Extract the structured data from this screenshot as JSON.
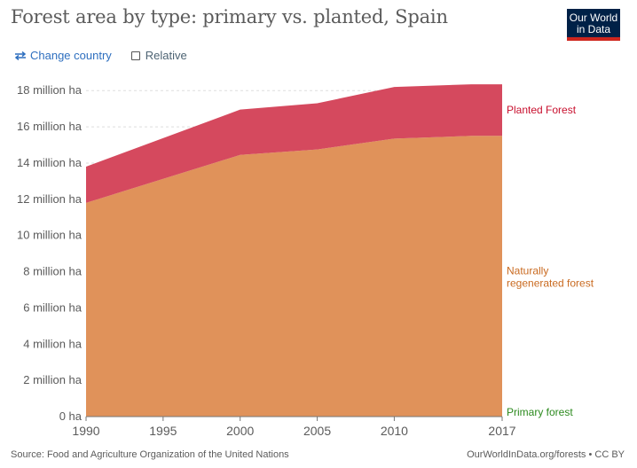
{
  "header": {
    "title": "Forest area by type: primary vs. planted, Spain",
    "logo_line1": "Our World",
    "logo_line2": "in Data"
  },
  "controls": {
    "change_country_label": "Change country",
    "relative_label": "Relative",
    "relative_checked": false
  },
  "footer": {
    "source": "Source: Food and Agriculture Organization of the United Nations",
    "link": "OurWorldInData.org/forests • CC BY"
  },
  "chart_data": {
    "type": "area",
    "stacked": true,
    "title": "Forest area by type: primary vs. planted, Spain",
    "x": [
      1990,
      2000,
      2005,
      2010,
      2015,
      2017
    ],
    "xticks": [
      1990,
      1995,
      2000,
      2005,
      2010,
      2017
    ],
    "yticks": [
      0,
      2,
      4,
      6,
      8,
      10,
      12,
      14,
      16,
      18
    ],
    "ytick_labels": [
      "0 ha",
      "2 million ha",
      "4 million ha",
      "6 million ha",
      "8 million ha",
      "10 million ha",
      "12 million ha",
      "14 million ha",
      "16 million ha",
      "18 million ha"
    ],
    "ylim": [
      0,
      18.5
    ],
    "xlim": [
      1990,
      2017
    ],
    "grid": true,
    "legend_position": "right",
    "series": [
      {
        "name": "Primary forest",
        "color": "#2c8a1e",
        "values": [
          0,
          0,
          0,
          0,
          0,
          0
        ]
      },
      {
        "name": "Naturally regenerated forest",
        "color": "#e0925a",
        "label_color": "#c96a20",
        "values": [
          11.8,
          14.45,
          14.75,
          15.35,
          15.5,
          15.5
        ]
      },
      {
        "name": "Planted Forest",
        "color": "#d5495e",
        "label_color": "#c8102e",
        "values": [
          2.0,
          2.5,
          2.55,
          2.85,
          2.85,
          2.85
        ]
      }
    ]
  }
}
